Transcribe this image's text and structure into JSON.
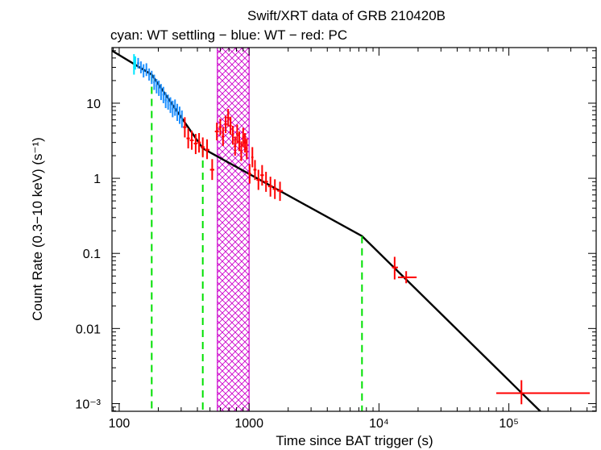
{
  "chart_data": {
    "type": "scatter",
    "title": "Swift/XRT data of GRB 210420B",
    "subtitle": "cyan: WT settling − blue: WT − red: PC",
    "xlabel": "Time since BAT trigger (s)",
    "ylabel": "Count Rate (0.3−10 keV) (s⁻¹)",
    "xscale": "log",
    "yscale": "log",
    "xlim": [
      88,
      470000
    ],
    "ylim": [
      0.00079,
      55
    ],
    "x_ticks": [
      {
        "value": 100,
        "label": "100"
      },
      {
        "value": 1000,
        "label": "1000"
      },
      {
        "value": 10000,
        "label": "10⁴"
      },
      {
        "value": 100000,
        "label": "10⁵"
      }
    ],
    "y_ticks": [
      {
        "value": 10,
        "label": "10"
      },
      {
        "value": 1,
        "label": "1"
      },
      {
        "value": 0.1,
        "label": "0.1"
      },
      {
        "value": 0.01,
        "label": "0.01"
      },
      {
        "value": 0.001,
        "label": "10⁻³"
      }
    ],
    "colors": {
      "wt_settling": "#00e5ff",
      "wt": "#1e90ff",
      "pc": "#ff0000",
      "model": "#000000",
      "breaks": "#00e000",
      "flare_region": "#cc00cc"
    },
    "flare_region": {
      "x_start": 570,
      "x_end": 1000
    },
    "model_line": {
      "x": [
        88,
        178,
        440,
        7400,
        180000
      ],
      "y": [
        50,
        24,
        2.5,
        0.17,
        0.00075
      ]
    },
    "breaks": [
      {
        "x": 178,
        "y": 24
      },
      {
        "x": 440,
        "y": 2.5
      },
      {
        "x": 7400,
        "y": 0.17
      }
    ],
    "series": [
      {
        "name": "WT settling",
        "color": "#00e5ff",
        "points": [
          {
            "x": 130,
            "y": 30,
            "ylo": 24,
            "yhi": 45,
            "xlo": 128,
            "xhi": 132
          },
          {
            "x": 133,
            "y": 36,
            "ylo": 28,
            "yhi": 42,
            "xlo": 131,
            "xhi": 135
          }
        ]
      },
      {
        "name": "WT",
        "color": "#1e90ff",
        "points": [
          {
            "x": 140,
            "y": 34,
            "ylo": 29,
            "yhi": 40,
            "xlo": 137,
            "xhi": 143
          },
          {
            "x": 147,
            "y": 30,
            "ylo": 25,
            "yhi": 36,
            "xlo": 144,
            "xhi": 150
          },
          {
            "x": 154,
            "y": 27,
            "ylo": 22,
            "yhi": 33,
            "xlo": 151,
            "xhi": 157
          },
          {
            "x": 162,
            "y": 28,
            "ylo": 23,
            "yhi": 34,
            "xlo": 159,
            "xhi": 165
          },
          {
            "x": 170,
            "y": 24,
            "ylo": 20,
            "yhi": 29,
            "xlo": 167,
            "xhi": 173
          },
          {
            "x": 178,
            "y": 22,
            "ylo": 18,
            "yhi": 27,
            "xlo": 175,
            "xhi": 181
          },
          {
            "x": 186,
            "y": 19,
            "ylo": 15,
            "yhi": 24,
            "xlo": 183,
            "xhi": 189
          },
          {
            "x": 194,
            "y": 17,
            "ylo": 13.5,
            "yhi": 21,
            "xlo": 191,
            "xhi": 197
          },
          {
            "x": 202,
            "y": 16,
            "ylo": 12.5,
            "yhi": 20,
            "xlo": 199,
            "xhi": 205
          },
          {
            "x": 210,
            "y": 14,
            "ylo": 11,
            "yhi": 18,
            "xlo": 207,
            "xhi": 213
          },
          {
            "x": 219,
            "y": 13,
            "ylo": 10,
            "yhi": 16.5,
            "xlo": 215,
            "xhi": 223
          },
          {
            "x": 228,
            "y": 11,
            "ylo": 8.6,
            "yhi": 14,
            "xlo": 224,
            "xhi": 232
          },
          {
            "x": 238,
            "y": 10.5,
            "ylo": 8.2,
            "yhi": 13,
            "xlo": 234,
            "xhi": 242
          },
          {
            "x": 248,
            "y": 9.5,
            "ylo": 7.4,
            "yhi": 12,
            "xlo": 244,
            "xhi": 252
          },
          {
            "x": 258,
            "y": 8.4,
            "ylo": 6.5,
            "yhi": 10.8,
            "xlo": 254,
            "xhi": 262
          },
          {
            "x": 269,
            "y": 8.8,
            "ylo": 6.8,
            "yhi": 11.2,
            "xlo": 265,
            "xhi": 273
          },
          {
            "x": 280,
            "y": 7.6,
            "ylo": 5.8,
            "yhi": 9.8,
            "xlo": 276,
            "xhi": 284
          },
          {
            "x": 292,
            "y": 7.0,
            "ylo": 5.3,
            "yhi": 9.0,
            "xlo": 288,
            "xhi": 296
          },
          {
            "x": 304,
            "y": 6.2,
            "ylo": 4.7,
            "yhi": 8.0,
            "xlo": 300,
            "xhi": 308
          }
        ]
      },
      {
        "name": "PC",
        "color": "#ff0000",
        "points": [
          {
            "x": 320,
            "y": 4.8,
            "ylo": 3.5,
            "yhi": 6.5,
            "xlo": 310,
            "xhi": 330
          },
          {
            "x": 340,
            "y": 3.4,
            "ylo": 2.5,
            "yhi": 4.6,
            "xlo": 330,
            "xhi": 350
          },
          {
            "x": 362,
            "y": 3.2,
            "ylo": 2.4,
            "yhi": 4.3,
            "xlo": 350,
            "xhi": 375
          },
          {
            "x": 388,
            "y": 2.9,
            "ylo": 2.1,
            "yhi": 3.9,
            "xlo": 375,
            "xhi": 400
          },
          {
            "x": 412,
            "y": 3.0,
            "ylo": 2.2,
            "yhi": 4.0,
            "xlo": 400,
            "xhi": 425
          },
          {
            "x": 440,
            "y": 2.6,
            "ylo": 1.9,
            "yhi": 3.5,
            "xlo": 425,
            "xhi": 455
          },
          {
            "x": 475,
            "y": 2.4,
            "ylo": 1.8,
            "yhi": 3.3,
            "xlo": 455,
            "xhi": 495
          },
          {
            "x": 520,
            "y": 1.3,
            "ylo": 0.95,
            "yhi": 1.8,
            "xlo": 500,
            "xhi": 540
          },
          {
            "x": 565,
            "y": 4.2,
            "ylo": 3.2,
            "yhi": 5.5,
            "xlo": 545,
            "xhi": 585
          },
          {
            "x": 600,
            "y": 4.8,
            "ylo": 3.7,
            "yhi": 6.2,
            "xlo": 585,
            "xhi": 615
          },
          {
            "x": 630,
            "y": 3.6,
            "ylo": 2.7,
            "yhi": 4.8,
            "xlo": 615,
            "xhi": 645
          },
          {
            "x": 660,
            "y": 5.2,
            "ylo": 4.0,
            "yhi": 6.8,
            "xlo": 645,
            "xhi": 675
          },
          {
            "x": 690,
            "y": 6.4,
            "ylo": 4.9,
            "yhi": 8.4,
            "xlo": 675,
            "xhi": 705
          },
          {
            "x": 720,
            "y": 5.0,
            "ylo": 3.8,
            "yhi": 6.6,
            "xlo": 705,
            "xhi": 735
          },
          {
            "x": 750,
            "y": 3.8,
            "ylo": 2.8,
            "yhi": 5.0,
            "xlo": 735,
            "xhi": 765
          },
          {
            "x": 780,
            "y": 2.7,
            "ylo": 2.0,
            "yhi": 3.6,
            "xlo": 765,
            "xhi": 795
          },
          {
            "x": 810,
            "y": 3.9,
            "ylo": 2.9,
            "yhi": 5.2,
            "xlo": 795,
            "xhi": 825
          },
          {
            "x": 840,
            "y": 3.1,
            "ylo": 2.3,
            "yhi": 4.2,
            "xlo": 825,
            "xhi": 855
          },
          {
            "x": 870,
            "y": 2.3,
            "ylo": 1.7,
            "yhi": 3.1,
            "xlo": 855,
            "xhi": 885
          },
          {
            "x": 900,
            "y": 3.5,
            "ylo": 2.6,
            "yhi": 4.7,
            "xlo": 885,
            "xhi": 915
          },
          {
            "x": 930,
            "y": 3.0,
            "ylo": 2.2,
            "yhi": 4.0,
            "xlo": 915,
            "xhi": 945
          },
          {
            "x": 960,
            "y": 2.5,
            "ylo": 1.8,
            "yhi": 3.4,
            "xlo": 945,
            "xhi": 975
          },
          {
            "x": 1010,
            "y": 1.15,
            "ylo": 0.85,
            "yhi": 1.55,
            "xlo": 980,
            "xhi": 1040
          },
          {
            "x": 1060,
            "y": 1.9,
            "ylo": 1.4,
            "yhi": 2.6,
            "xlo": 1040,
            "xhi": 1080
          },
          {
            "x": 1110,
            "y": 1.3,
            "ylo": 0.95,
            "yhi": 1.75,
            "xlo": 1080,
            "xhi": 1140
          },
          {
            "x": 1180,
            "y": 0.95,
            "ylo": 0.7,
            "yhi": 1.3,
            "xlo": 1140,
            "xhi": 1220
          },
          {
            "x": 1260,
            "y": 1.1,
            "ylo": 0.8,
            "yhi": 1.5,
            "xlo": 1220,
            "xhi": 1300
          },
          {
            "x": 1350,
            "y": 0.9,
            "ylo": 0.66,
            "yhi": 1.22,
            "xlo": 1300,
            "xhi": 1400
          },
          {
            "x": 1460,
            "y": 0.78,
            "ylo": 0.57,
            "yhi": 1.05,
            "xlo": 1400,
            "xhi": 1520
          },
          {
            "x": 1580,
            "y": 0.72,
            "ylo": 0.53,
            "yhi": 0.97,
            "xlo": 1520,
            "xhi": 1650
          },
          {
            "x": 1730,
            "y": 0.68,
            "ylo": 0.5,
            "yhi": 0.9,
            "xlo": 1650,
            "xhi": 1820
          },
          {
            "x": 13200,
            "y": 0.065,
            "ylo": 0.045,
            "yhi": 0.09,
            "xlo": 12600,
            "xhi": 14000
          },
          {
            "x": 16200,
            "y": 0.048,
            "ylo": 0.04,
            "yhi": 0.058,
            "xlo": 14000,
            "xhi": 19500
          },
          {
            "x": 125000,
            "y": 0.00138,
            "ylo": 0.00098,
            "yhi": 0.00205,
            "xlo": 80000,
            "xhi": 420000
          }
        ]
      }
    ]
  }
}
